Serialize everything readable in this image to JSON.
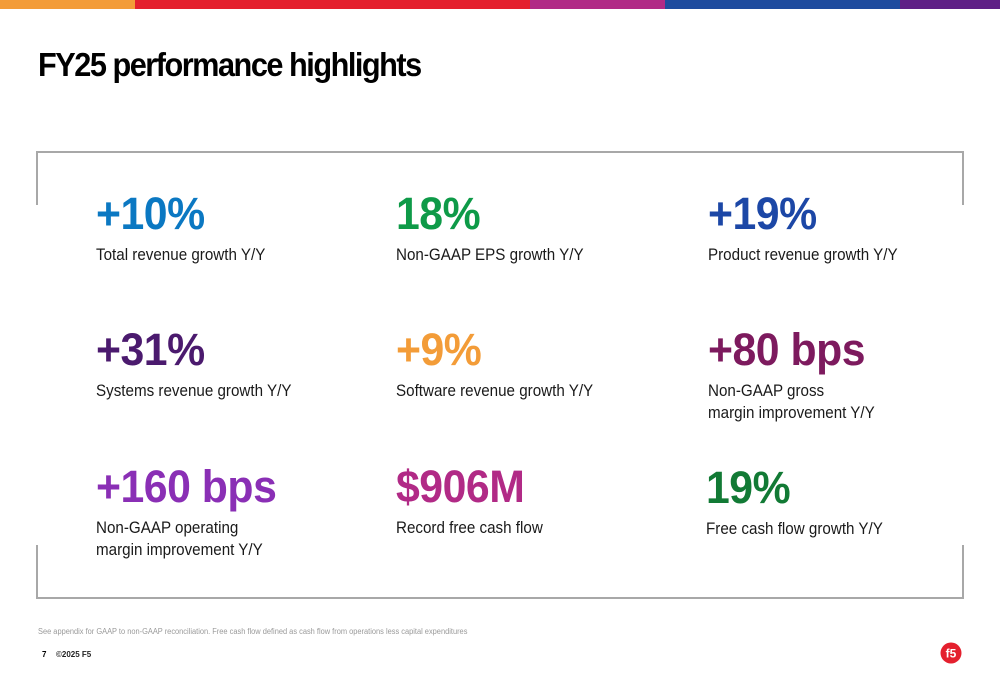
{
  "top_bar": {
    "segments": [
      {
        "color": "#f39c38",
        "portion": 0.135
      },
      {
        "color": "#e4202e",
        "portion": 0.395
      },
      {
        "color": "#b12a86",
        "portion": 0.135
      },
      {
        "color": "#1e4b9e",
        "portion": 0.235
      },
      {
        "color": "#5f1f86",
        "portion": 0.1
      }
    ]
  },
  "title": "FY25 performance highlights",
  "metrics": [
    {
      "value": "+10%",
      "label": "Total revenue growth Y/Y",
      "color": "#0b78c2"
    },
    {
      "value": "18%",
      "label": "Non-GAAP EPS growth Y/Y",
      "color": "#0e9a48"
    },
    {
      "value": "+19%",
      "label": "Product revenue growth Y/Y",
      "color": "#1c47a6"
    },
    {
      "value": "+31%",
      "label": "Systems revenue growth Y/Y",
      "color": "#4b1a6e"
    },
    {
      "value": "+9%",
      "label": "Software revenue growth Y/Y",
      "color": "#f39c38"
    },
    {
      "value": "+80 bps",
      "label": "Non-GAAP gross\nmargin improvement Y/Y",
      "color": "#7d1a5e"
    },
    {
      "value": "+160 bps",
      "label": "Non-GAAP operating\nmargin improvement Y/Y",
      "color": "#8a2fb5"
    },
    {
      "value": "$906M",
      "label": "Record free cash flow",
      "color": "#b12a86"
    },
    {
      "value": "19%",
      "label": "Free cash flow growth Y/Y",
      "color": "#127a35"
    }
  ],
  "footer": {
    "footnote": "See appendix for GAAP to non-GAAP reconciliation. Free cash flow defined as cash flow from operations less capital expenditures",
    "page_number": "7",
    "copyright": "©2025 F5",
    "logo_icon": "f5-logo-icon",
    "logo_text": "f5",
    "brand_color": "#e4202e"
  }
}
